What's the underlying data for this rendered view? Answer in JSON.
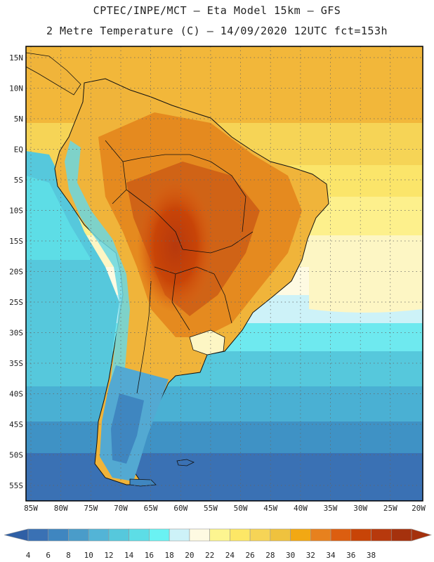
{
  "title": {
    "line1": "CPTEC/INPE/MCT –  Eta Model 15km – GFS",
    "line2": "2 Metre Temperature (C) – 14/09/2020 12UTC fct=153h"
  },
  "lat_ticks": [
    "15N",
    "10N",
    "5N",
    "EQ",
    "5S",
    "10S",
    "15S",
    "20S",
    "25S",
    "30S",
    "35S",
    "40S",
    "45S",
    "50S",
    "55S"
  ],
  "lon_ticks": [
    "85W",
    "80W",
    "75W",
    "70W",
    "65W",
    "60W",
    "55W",
    "50W",
    "45W",
    "40W",
    "35W",
    "30W",
    "25W",
    "20W"
  ],
  "colorbar": {
    "levels": [
      "4",
      "6",
      "8",
      "10",
      "12",
      "14",
      "16",
      "18",
      "20",
      "22",
      "24",
      "26",
      "28",
      "30",
      "32",
      "34",
      "36",
      "38"
    ],
    "colors": [
      "#3a71b4",
      "#3f86c0",
      "#4a9cc9",
      "#53b4d6",
      "#56c8dc",
      "#5ddde6",
      "#6af2f3",
      "#cdf2f8",
      "#fefae2",
      "#fdf590",
      "#fde766",
      "#f6d456",
      "#efc23e",
      "#f2a813",
      "#e7811e",
      "#dc5e10",
      "#c84407",
      "#b7390d",
      "#a5310d"
    ],
    "under_color": "#2f5fa5",
    "over_color": "#a5310d"
  }
}
